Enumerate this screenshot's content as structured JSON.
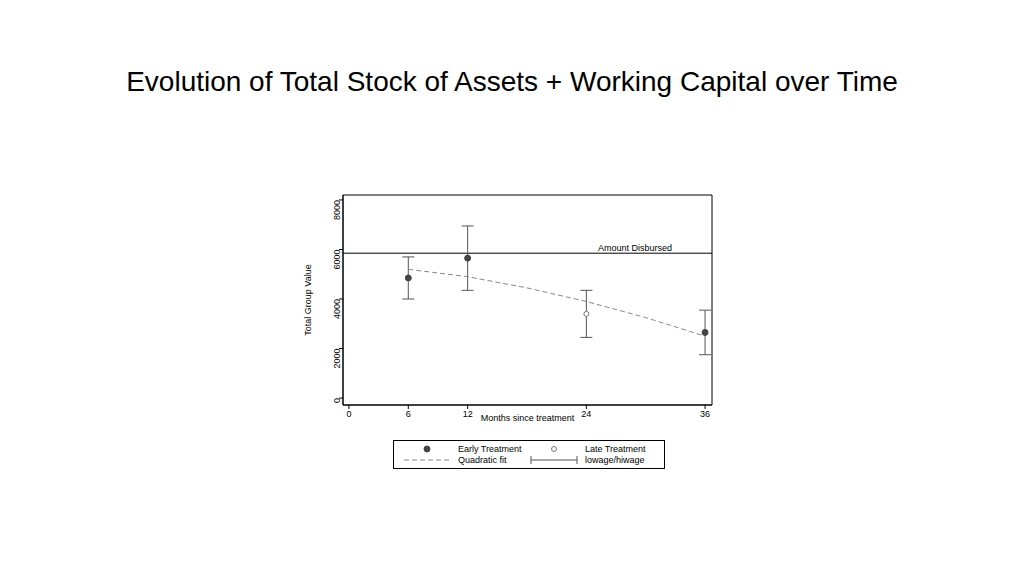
{
  "chart_data": {
    "type": "scatter",
    "title": "Evolution of Total Stock of Assets + Working Capital over Time",
    "x_label": "Months since treatment",
    "y_label": "Total Group Value",
    "xlim": [
      -0.6,
      36.7
    ],
    "xticks": [
      0,
      6,
      12,
      24,
      36
    ],
    "ylim": [
      -280,
      8200
    ],
    "yticks": [
      0,
      2000,
      4000,
      6000,
      8000
    ],
    "grid": false,
    "legend": "bottom",
    "error_bar_name": "lowage/hiwage",
    "reference_lines": [
      {
        "value": 5850,
        "label": "Amount Disbursed",
        "color": "#000000"
      }
    ],
    "series": [
      {
        "name": "Early Treatment",
        "type": "scatter",
        "marker": "circle",
        "color": "#444444",
        "x": [
          6,
          12,
          36
        ],
        "values": [
          4850,
          5650,
          2650
        ],
        "low": [
          4000,
          4350,
          1750
        ],
        "high": [
          5700,
          6950,
          3550
        ]
      },
      {
        "name": "Late Treatment",
        "type": "scatter",
        "marker": "hollow_circle",
        "color": "#777777",
        "x": [
          24
        ],
        "values": [
          3400
        ],
        "low": [
          2450
        ],
        "high": [
          4350
        ]
      },
      {
        "name": "Quadratic fit",
        "type": "line",
        "line_style": "dashed",
        "color": "#888888",
        "x": [
          6,
          12,
          18,
          24,
          30,
          36
        ],
        "values": [
          5200,
          4900,
          4450,
          3900,
          3250,
          2500
        ]
      }
    ]
  }
}
